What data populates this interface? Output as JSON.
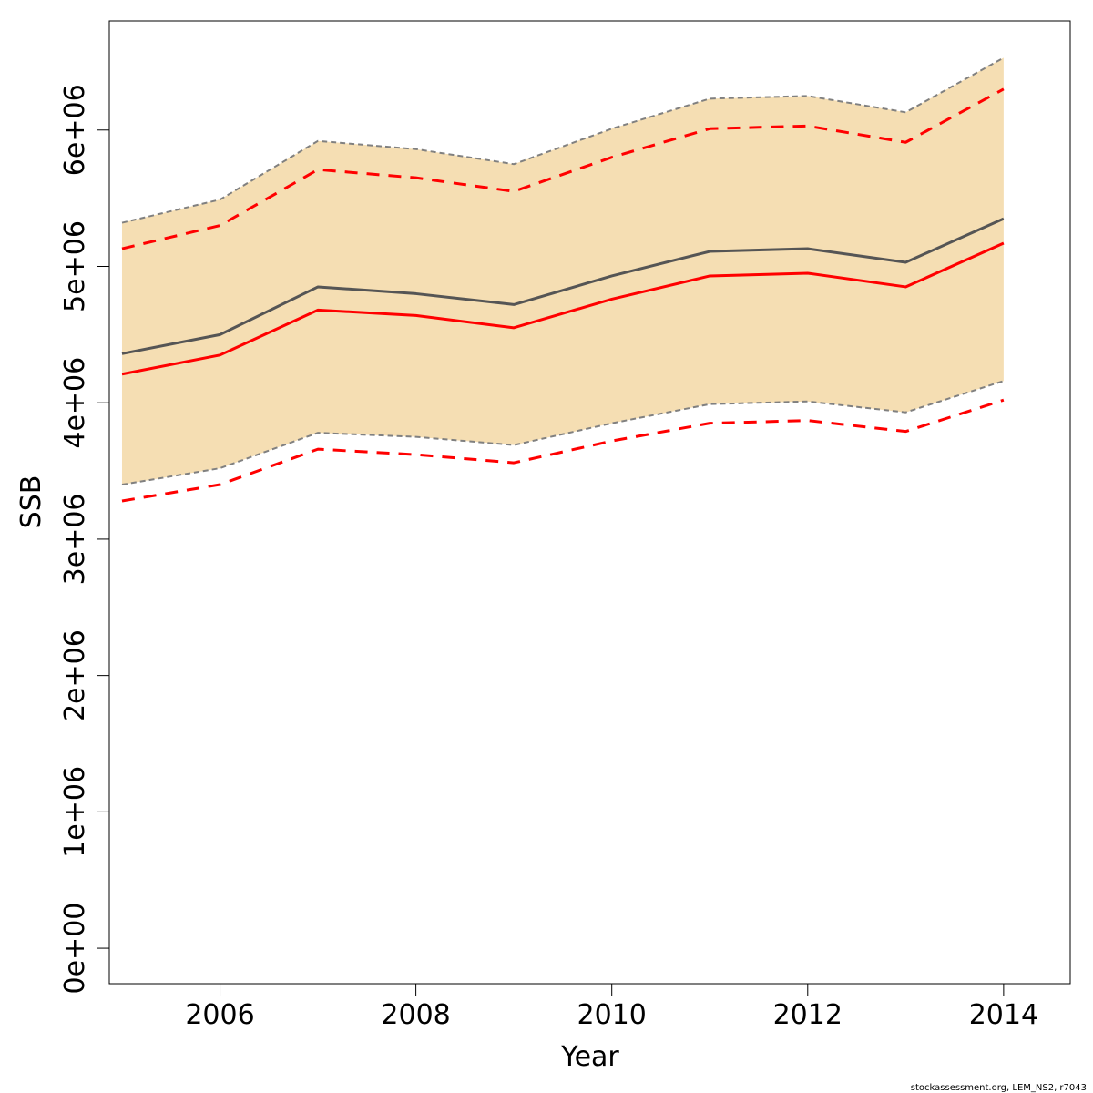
{
  "chart_data": {
    "type": "line",
    "xlabel": "Year",
    "ylabel": "SSB",
    "xlim": [
      2004.87,
      2014.68
    ],
    "ylim": [
      -260000,
      6800000
    ],
    "x_ticks": [
      2006,
      2008,
      2010,
      2012,
      2014
    ],
    "y_ticks": [
      {
        "value": 0,
        "label": "0e+00"
      },
      {
        "value": 1000000,
        "label": "1e+06"
      },
      {
        "value": 2000000,
        "label": "2e+06"
      },
      {
        "value": 3000000,
        "label": "3e+06"
      },
      {
        "value": 4000000,
        "label": "4e+06"
      },
      {
        "value": 5000000,
        "label": "5e+06"
      },
      {
        "value": 6000000,
        "label": "6e+06"
      }
    ],
    "x": [
      2005,
      2006,
      2007,
      2008,
      2009,
      2010,
      2011,
      2012,
      2013,
      2014
    ],
    "band": {
      "color": "#F5DEB3",
      "edge_color": "#808080",
      "upper": [
        5320000,
        5490000,
        5920000,
        5860000,
        5750000,
        6010000,
        6230000,
        6250000,
        6130000,
        6530000
      ],
      "lower": [
        3400000,
        3520000,
        3780000,
        3750000,
        3690000,
        3850000,
        3990000,
        4010000,
        3930000,
        4160000
      ]
    },
    "series": [
      {
        "values": [
          4360000,
          4500000,
          4850000,
          4800000,
          4720000,
          4930000,
          5110000,
          5130000,
          5030000,
          5350000
        ],
        "color": "#555555",
        "style": "solid"
      },
      {
        "values": [
          4210000,
          4350000,
          4680000,
          4640000,
          4550000,
          4760000,
          4930000,
          4950000,
          4850000,
          5170000
        ],
        "color": "#FF0000",
        "style": "solid"
      },
      {
        "values": [
          5130000,
          5300000,
          5710000,
          5650000,
          5550000,
          5800000,
          6010000,
          6030000,
          5910000,
          6300000
        ],
        "color": "#FF0000",
        "style": "dashed"
      },
      {
        "values": [
          3280000,
          3400000,
          3660000,
          3620000,
          3560000,
          3720000,
          3850000,
          3870000,
          3790000,
          4020000
        ],
        "color": "#FF0000",
        "style": "dashed"
      }
    ]
  },
  "footer": {
    "note": "stockassessment.org, LEM_NS2, r7043"
  }
}
